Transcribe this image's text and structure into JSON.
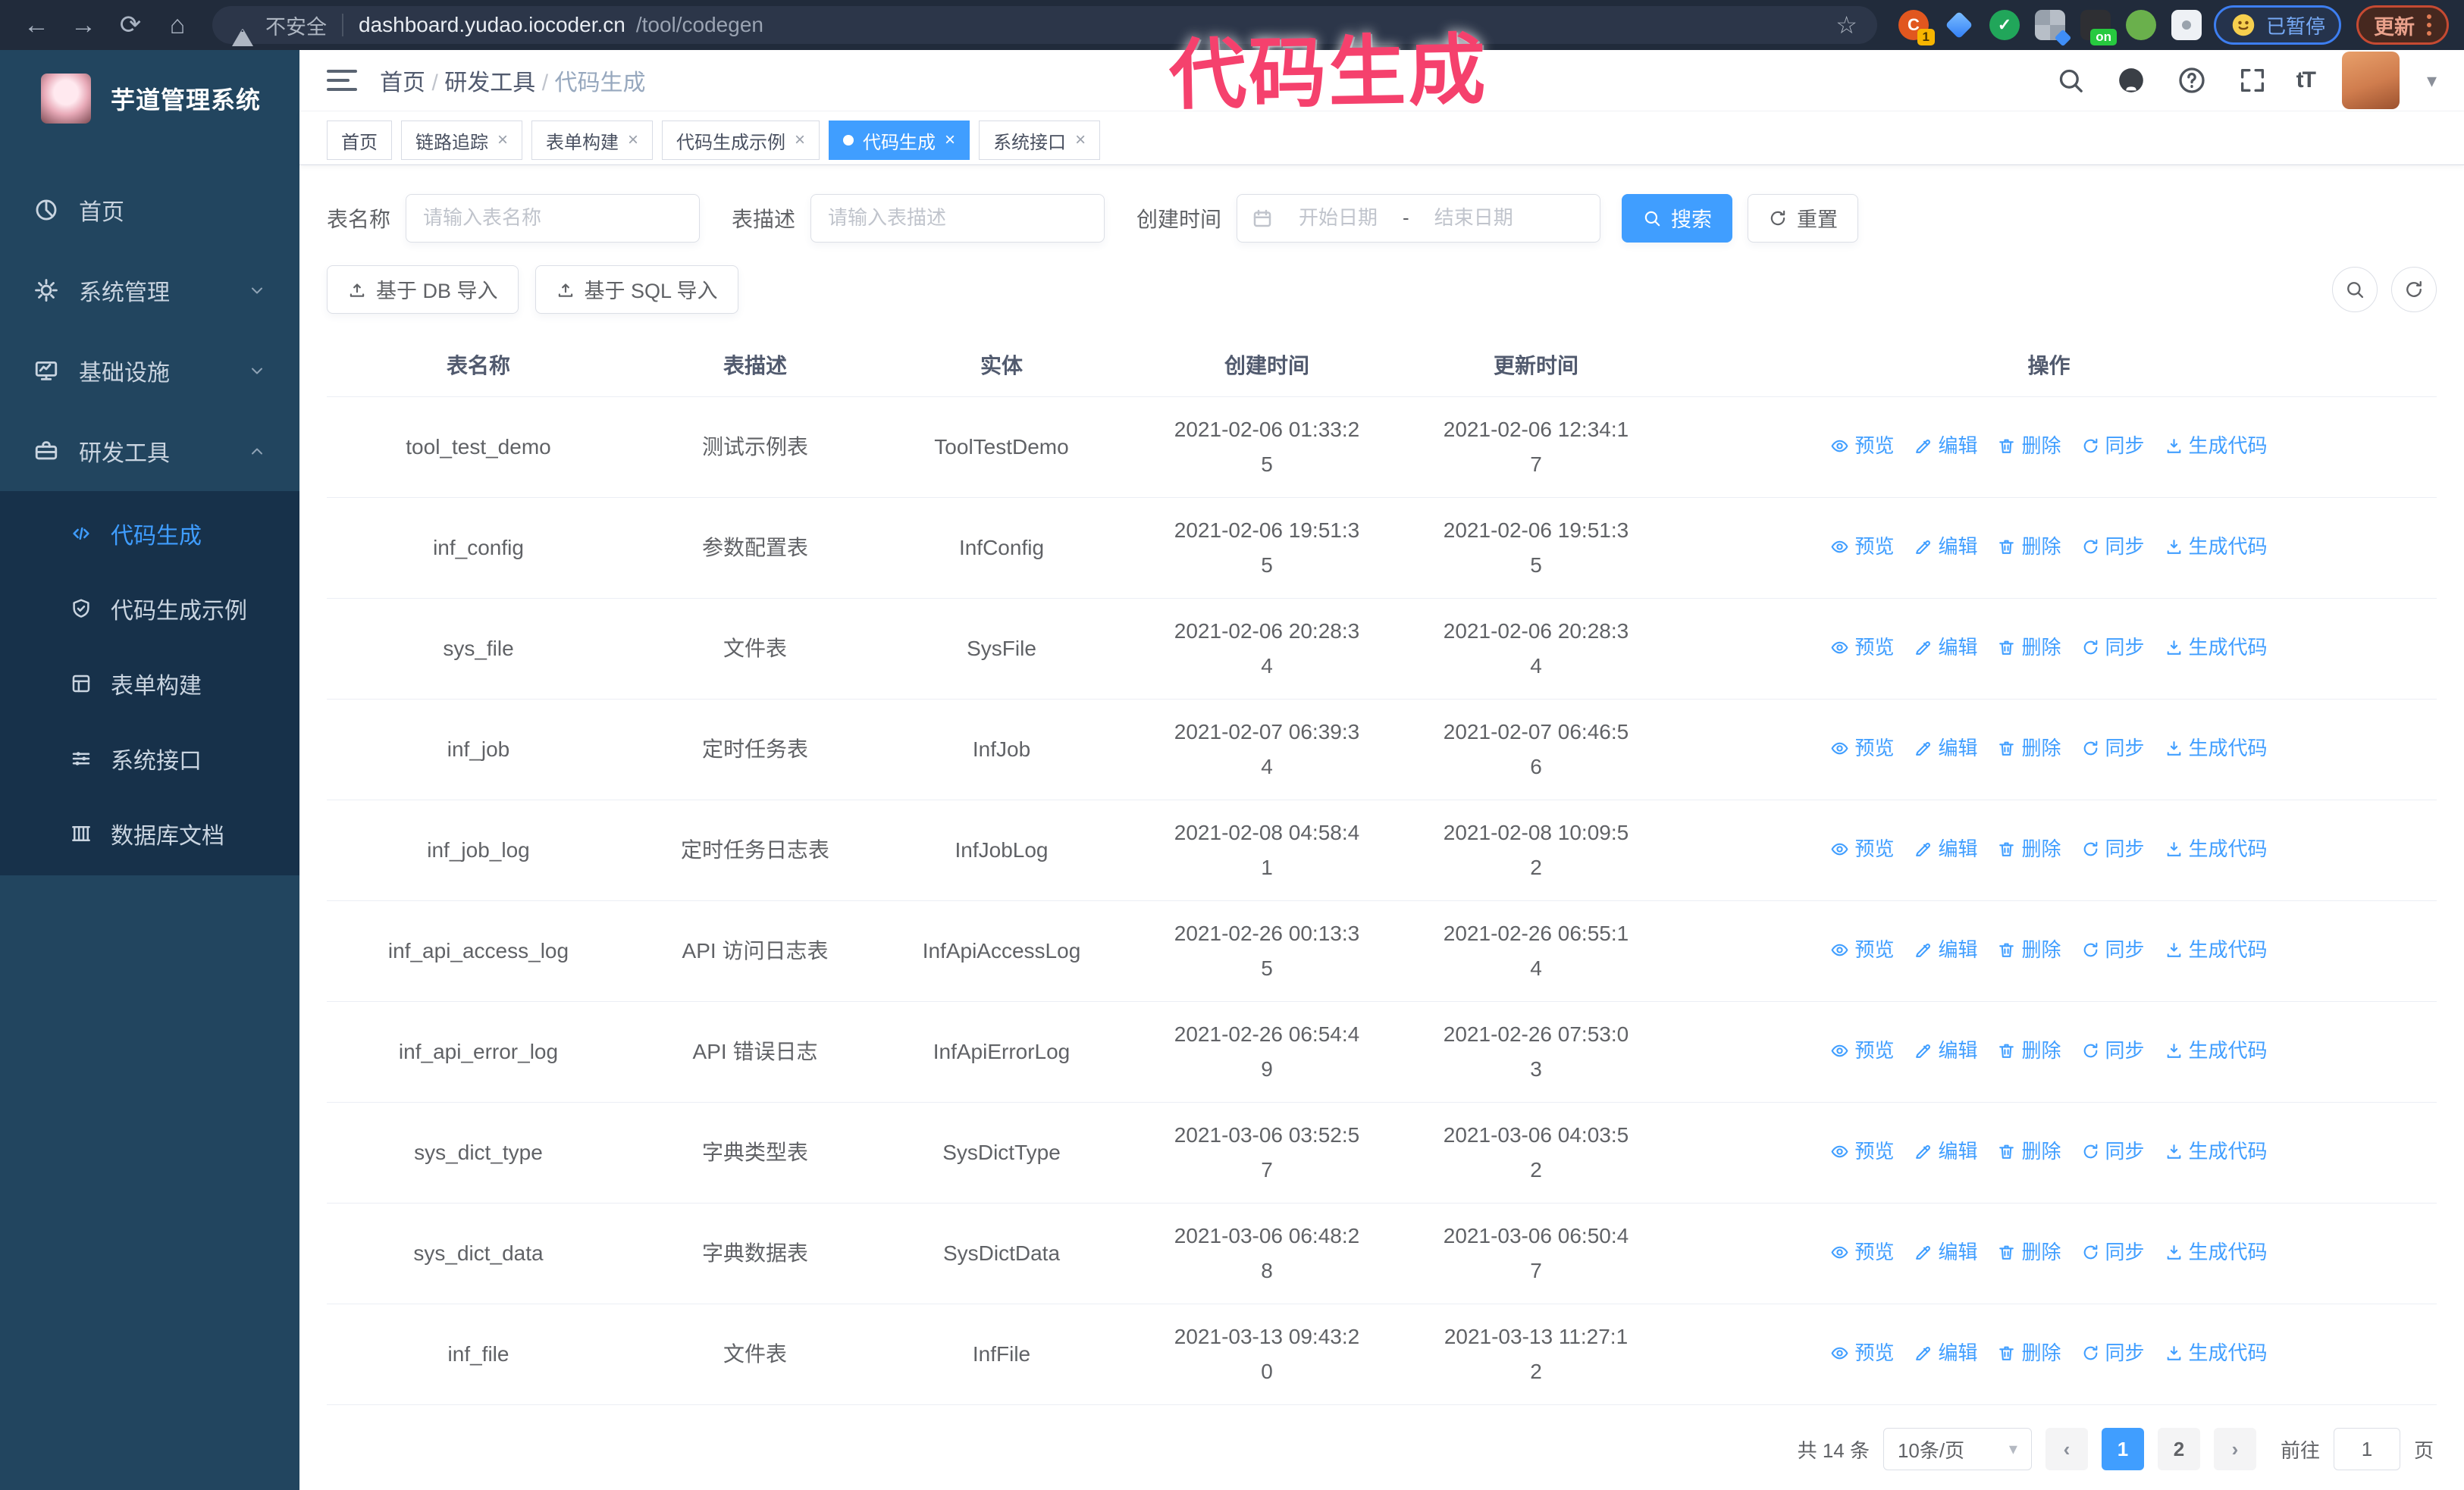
{
  "colors": {
    "primary": "#409eff",
    "annotation": "#f5416d",
    "sidebar": "#22455f",
    "submenu": "#17314a"
  },
  "browser": {
    "security_label": "不安全",
    "url_host": "dashboard.yudao.iocoder.cn",
    "url_path": "/tool/codegen",
    "extension_badge_count": "1",
    "extension_badge_on": "on",
    "paused_badge_label": "已暂停",
    "update_button_label": "更新"
  },
  "annotation": {
    "text": "代码生成"
  },
  "sidebar": {
    "app_title": "芋道管理系统",
    "menu": [
      {
        "label": "首页",
        "icon": "dashboard-icon",
        "chevron": null,
        "active": false
      },
      {
        "label": "系统管理",
        "icon": "gear-icon",
        "chevron": "down",
        "active": false
      },
      {
        "label": "基础设施",
        "icon": "monitor-icon",
        "chevron": "down",
        "active": false
      },
      {
        "label": "研发工具",
        "icon": "toolbox-icon",
        "chevron": "up",
        "active": false
      }
    ],
    "submenu": [
      {
        "label": "代码生成",
        "icon": "code-icon",
        "active": true
      },
      {
        "label": "代码生成示例",
        "icon": "shield-check-icon",
        "active": false
      },
      {
        "label": "表单构建",
        "icon": "form-icon",
        "active": false
      },
      {
        "label": "系统接口",
        "icon": "sliders-icon",
        "active": false
      },
      {
        "label": "数据库文档",
        "icon": "columns-icon",
        "active": false
      }
    ]
  },
  "header": {
    "breadcrumb": [
      "首页",
      "研发工具",
      "代码生成"
    ],
    "separator": "/"
  },
  "tabs": [
    {
      "label": "首页",
      "closable": false,
      "active": false
    },
    {
      "label": "链路追踪",
      "closable": true,
      "active": false
    },
    {
      "label": "表单构建",
      "closable": true,
      "active": false
    },
    {
      "label": "代码生成示例",
      "closable": true,
      "active": false
    },
    {
      "label": "代码生成",
      "closable": true,
      "active": true
    },
    {
      "label": "系统接口",
      "closable": true,
      "active": false
    }
  ],
  "filters": {
    "table_name_label": "表名称",
    "table_name_placeholder": "请输入表名称",
    "table_desc_label": "表描述",
    "table_desc_placeholder": "请输入表描述",
    "create_time_label": "创建时间",
    "start_placeholder": "开始日期",
    "range_separator": "-",
    "end_placeholder": "结束日期",
    "search_label": "搜索",
    "reset_label": "重置"
  },
  "toolbar": {
    "db_import_label": "基于 DB 导入",
    "sql_import_label": "基于 SQL 导入"
  },
  "table": {
    "columns": [
      "表名称",
      "表描述",
      "实体",
      "创建时间",
      "更新时间",
      "操作"
    ],
    "action_labels": [
      "预览",
      "编辑",
      "删除",
      "同步",
      "生成代码"
    ],
    "rows": [
      {
        "name": "tool_test_demo",
        "desc": "测试示例表",
        "entity": "ToolTestDemo",
        "created": "2021-02-06 01:33:25",
        "updated": "2021-02-06 12:34:17"
      },
      {
        "name": "inf_config",
        "desc": "参数配置表",
        "entity": "InfConfig",
        "created": "2021-02-06 19:51:35",
        "updated": "2021-02-06 19:51:35"
      },
      {
        "name": "sys_file",
        "desc": "文件表",
        "entity": "SysFile",
        "created": "2021-02-06 20:28:34",
        "updated": "2021-02-06 20:28:34"
      },
      {
        "name": "inf_job",
        "desc": "定时任务表",
        "entity": "InfJob",
        "created": "2021-02-07 06:39:34",
        "updated": "2021-02-07 06:46:56"
      },
      {
        "name": "inf_job_log",
        "desc": "定时任务日志表",
        "entity": "InfJobLog",
        "created": "2021-02-08 04:58:41",
        "updated": "2021-02-08 10:09:52"
      },
      {
        "name": "inf_api_access_log",
        "desc": "API 访问日志表",
        "entity": "InfApiAccessLog",
        "created": "2021-02-26 00:13:35",
        "updated": "2021-02-26 06:55:14"
      },
      {
        "name": "inf_api_error_log",
        "desc": "API 错误日志",
        "entity": "InfApiErrorLog",
        "created": "2021-02-26 06:54:49",
        "updated": "2021-02-26 07:53:03"
      },
      {
        "name": "sys_dict_type",
        "desc": "字典类型表",
        "entity": "SysDictType",
        "created": "2021-03-06 03:52:57",
        "updated": "2021-03-06 04:03:52"
      },
      {
        "name": "sys_dict_data",
        "desc": "字典数据表",
        "entity": "SysDictData",
        "created": "2021-03-06 06:48:28",
        "updated": "2021-03-06 06:50:47"
      },
      {
        "name": "inf_file",
        "desc": "文件表",
        "entity": "InfFile",
        "created": "2021-03-13 09:43:20",
        "updated": "2021-03-13 11:27:12"
      }
    ]
  },
  "pagination": {
    "total_label": "共 14 条",
    "page_size_label": "10条/页",
    "pages": [
      "1",
      "2"
    ],
    "active_page": "1",
    "prev_label": "‹",
    "next_label": "›",
    "goto_label": "前往",
    "goto_value": "1",
    "page_unit_label": "页"
  }
}
